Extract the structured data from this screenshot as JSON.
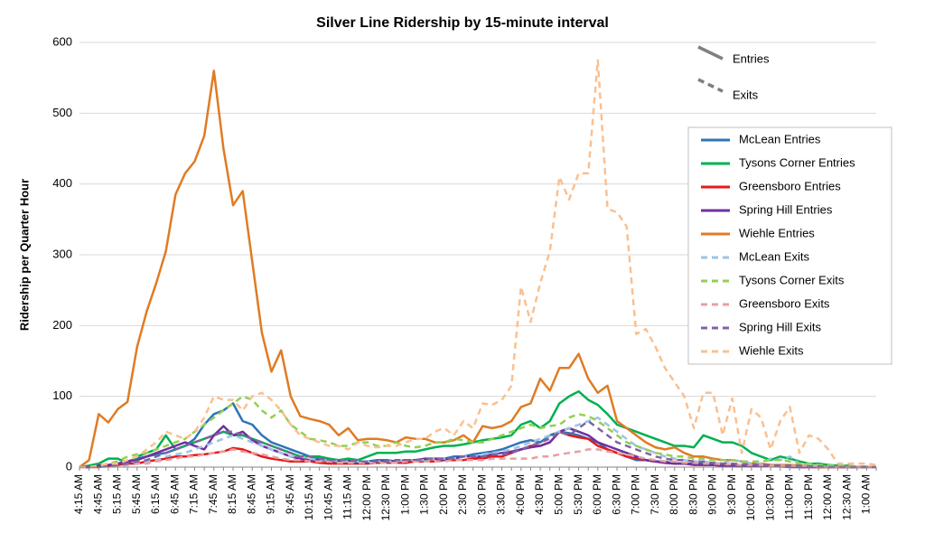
{
  "chart_data": {
    "type": "line",
    "title": "Silver Line Ridership by 15-minute interval",
    "y_label": "Ridership per Quarter Hour",
    "ylim": [
      0,
      600
    ],
    "yticks": [
      0,
      100,
      200,
      300,
      400,
      500,
      600
    ],
    "grid": true,
    "legend": "right",
    "line_styles": [
      {
        "name": "Entries",
        "dash": "solid",
        "color": "#808080"
      },
      {
        "name": "Exits",
        "dash": "dashed",
        "color": "#808080"
      }
    ],
    "categories": [
      "4:15 AM",
      null,
      "4:45 AM",
      null,
      "5:15 AM",
      null,
      "5:45 AM",
      null,
      "6:15 AM",
      null,
      "6:45 AM",
      null,
      "7:15 AM",
      null,
      "7:45 AM",
      null,
      "8:15 AM",
      null,
      "8:45 AM",
      null,
      "9:15 AM",
      null,
      "9:45 AM",
      null,
      "10:15 AM",
      null,
      "10:45 AM",
      null,
      "11:15 AM",
      null,
      "12:00 PM",
      null,
      "12:30 PM",
      null,
      "1:00 PM",
      null,
      "1:30 PM",
      null,
      "2:00 PM",
      null,
      "2:30 PM",
      null,
      "3:00 PM",
      null,
      "3:30 PM",
      null,
      "4:00 PM",
      null,
      "4:30 PM",
      null,
      "5:00 PM",
      null,
      "5:30 PM",
      null,
      "6:00 PM",
      null,
      "6:30 PM",
      null,
      "7:00 PM",
      null,
      "7:30 PM",
      null,
      "8:00 PM",
      null,
      "8:30 PM",
      null,
      "9:00 PM",
      null,
      "9:30 PM",
      null,
      "10:00 PM",
      null,
      "10:30 PM",
      null,
      "11:00 PM",
      null,
      "11:30 PM",
      null,
      "12:00 AM",
      null,
      "12:30 AM",
      null,
      "1:00 AM",
      null
    ],
    "series": [
      {
        "name": "McLean Entries",
        "color": "#2e75b6",
        "dash": "solid",
        "values": [
          0,
          0,
          2,
          3,
          5,
          8,
          12,
          15,
          18,
          20,
          25,
          30,
          40,
          60,
          75,
          80,
          90,
          65,
          60,
          45,
          35,
          30,
          25,
          20,
          15,
          12,
          10,
          10,
          10,
          8,
          8,
          10,
          10,
          8,
          8,
          10,
          10,
          12,
          12,
          15,
          15,
          18,
          20,
          22,
          25,
          30,
          35,
          38,
          35,
          45,
          50,
          48,
          45,
          40,
          35,
          25,
          20,
          15,
          10,
          10,
          8,
          8,
          5,
          5,
          5,
          5,
          3,
          3,
          3,
          2,
          2,
          2,
          2,
          2,
          1,
          1,
          1,
          0,
          0,
          0,
          0,
          0,
          0,
          0
        ]
      },
      {
        "name": "Tysons Corner Entries",
        "color": "#00b050",
        "dash": "solid",
        "values": [
          0,
          2,
          5,
          12,
          12,
          5,
          15,
          20,
          25,
          45,
          25,
          30,
          35,
          40,
          45,
          50,
          45,
          45,
          40,
          35,
          30,
          25,
          20,
          15,
          15,
          15,
          12,
          10,
          12,
          10,
          15,
          20,
          20,
          20,
          22,
          22,
          25,
          28,
          30,
          30,
          32,
          35,
          38,
          40,
          42,
          45,
          60,
          65,
          55,
          65,
          90,
          100,
          107,
          95,
          88,
          75,
          60,
          55,
          50,
          45,
          40,
          35,
          30,
          30,
          28,
          45,
          40,
          35,
          35,
          30,
          20,
          15,
          10,
          15,
          12,
          8,
          5,
          5,
          3,
          2,
          2,
          0,
          0,
          0
        ]
      },
      {
        "name": "Greensboro Entries",
        "color": "#e41a1c",
        "dash": "solid",
        "values": [
          0,
          0,
          0,
          2,
          3,
          5,
          5,
          8,
          10,
          12,
          15,
          15,
          17,
          18,
          20,
          22,
          27,
          25,
          20,
          15,
          12,
          10,
          8,
          8,
          8,
          6,
          5,
          5,
          5,
          5,
          5,
          6,
          6,
          6,
          6,
          8,
          8,
          8,
          10,
          10,
          10,
          12,
          12,
          15,
          15,
          20,
          25,
          30,
          30,
          35,
          50,
          45,
          42,
          40,
          30,
          25,
          20,
          15,
          12,
          10,
          8,
          6,
          5,
          5,
          3,
          3,
          3,
          2,
          2,
          2,
          1,
          1,
          1,
          1,
          1,
          0,
          0,
          0,
          0,
          0,
          0,
          0,
          0,
          0
        ]
      },
      {
        "name": "Spring Hill Entries",
        "color": "#7030a0",
        "dash": "solid",
        "values": [
          0,
          0,
          2,
          3,
          5,
          8,
          10,
          15,
          20,
          25,
          30,
          35,
          30,
          25,
          45,
          58,
          45,
          50,
          38,
          30,
          25,
          20,
          15,
          12,
          10,
          10,
          8,
          8,
          8,
          6,
          6,
          8,
          8,
          8,
          10,
          10,
          12,
          12,
          10,
          12,
          15,
          15,
          15,
          18,
          20,
          22,
          25,
          28,
          30,
          35,
          50,
          55,
          50,
          45,
          35,
          30,
          25,
          20,
          15,
          10,
          8,
          6,
          5,
          5,
          4,
          3,
          3,
          2,
          2,
          2,
          1,
          1,
          1,
          1,
          0,
          0,
          0,
          0,
          0,
          0,
          0,
          0,
          0,
          0
        ]
      },
      {
        "name": "Wiehle Entries",
        "color": "#e07b24",
        "dash": "solid",
        "values": [
          0,
          10,
          75,
          63,
          82,
          92,
          170,
          220,
          260,
          305,
          385,
          415,
          432,
          468,
          560,
          450,
          370,
          390,
          290,
          190,
          135,
          165,
          100,
          72,
          68,
          65,
          60,
          45,
          55,
          38,
          40,
          40,
          38,
          35,
          42,
          40,
          40,
          35,
          35,
          38,
          45,
          35,
          58,
          55,
          58,
          65,
          85,
          90,
          125,
          108,
          140,
          140,
          160,
          125,
          105,
          115,
          65,
          55,
          45,
          35,
          28,
          25,
          28,
          20,
          15,
          15,
          12,
          10,
          10,
          8,
          5,
          5,
          3,
          3,
          3,
          2,
          2,
          0,
          0,
          0,
          0,
          0,
          0,
          0
        ]
      },
      {
        "name": "McLean Exits",
        "color": "#9dc3e6",
        "dash": "dashed",
        "values": [
          0,
          0,
          0,
          1,
          2,
          3,
          5,
          8,
          10,
          15,
          18,
          20,
          25,
          30,
          35,
          40,
          45,
          40,
          35,
          30,
          25,
          20,
          15,
          15,
          12,
          10,
          10,
          8,
          8,
          8,
          8,
          8,
          8,
          8,
          10,
          10,
          10,
          12,
          12,
          12,
          15,
          15,
          18,
          20,
          22,
          25,
          30,
          35,
          40,
          45,
          50,
          55,
          60,
          65,
          70,
          60,
          50,
          40,
          30,
          25,
          20,
          15,
          12,
          10,
          8,
          8,
          6,
          5,
          10,
          8,
          5,
          5,
          12,
          10,
          15,
          5,
          3,
          3,
          2,
          2,
          1,
          1,
          0,
          0
        ]
      },
      {
        "name": "Tysons Corner Exits",
        "color": "#92d050",
        "dash": "dashed",
        "values": [
          0,
          0,
          2,
          5,
          8,
          15,
          18,
          20,
          25,
          30,
          35,
          40,
          50,
          60,
          70,
          80,
          90,
          100,
          95,
          80,
          70,
          80,
          60,
          50,
          40,
          38,
          35,
          30,
          30,
          35,
          35,
          30,
          30,
          35,
          30,
          28,
          30,
          35,
          35,
          40,
          38,
          35,
          35,
          40,
          45,
          50,
          55,
          60,
          55,
          58,
          60,
          70,
          75,
          72,
          65,
          55,
          45,
          35,
          30,
          25,
          20,
          18,
          15,
          15,
          12,
          12,
          10,
          10,
          10,
          8,
          8,
          8,
          10,
          10,
          8,
          5,
          5,
          3,
          2,
          2,
          2,
          1,
          1,
          0
        ]
      },
      {
        "name": "Greensboro Exits",
        "color": "#e6a0a0",
        "dash": "dashed",
        "values": [
          0,
          0,
          0,
          1,
          2,
          3,
          5,
          5,
          8,
          10,
          12,
          15,
          15,
          18,
          20,
          22,
          25,
          22,
          20,
          18,
          15,
          12,
          10,
          10,
          8,
          8,
          8,
          6,
          6,
          6,
          6,
          6,
          6,
          6,
          8,
          8,
          8,
          8,
          8,
          10,
          10,
          10,
          10,
          12,
          12,
          12,
          12,
          12,
          15,
          15,
          18,
          20,
          22,
          25,
          25,
          22,
          20,
          18,
          15,
          12,
          10,
          8,
          8,
          6,
          6,
          5,
          5,
          4,
          4,
          3,
          3,
          3,
          2,
          2,
          2,
          1,
          1,
          1,
          0,
          0,
          0,
          0,
          0,
          0
        ]
      },
      {
        "name": "Spring Hill Exits",
        "color": "#8064a2",
        "dash": "dashed",
        "values": [
          0,
          0,
          1,
          2,
          3,
          5,
          8,
          10,
          15,
          20,
          25,
          30,
          35,
          40,
          45,
          50,
          50,
          45,
          40,
          35,
          30,
          25,
          20,
          15,
          15,
          12,
          10,
          10,
          10,
          8,
          8,
          8,
          8,
          10,
          10,
          10,
          12,
          12,
          12,
          12,
          15,
          15,
          15,
          18,
          18,
          20,
          25,
          30,
          35,
          40,
          50,
          45,
          55,
          65,
          55,
          45,
          35,
          30,
          25,
          20,
          15,
          12,
          10,
          10,
          8,
          8,
          6,
          5,
          5,
          4,
          4,
          3,
          3,
          2,
          2,
          2,
          1,
          1,
          0,
          0,
          0,
          0,
          0,
          0
        ]
      },
      {
        "name": "Wiehle Exits",
        "color": "#fac090",
        "dash": "dashed",
        "values": [
          0,
          0,
          2,
          5,
          5,
          10,
          15,
          25,
          35,
          50,
          45,
          40,
          50,
          70,
          100,
          95,
          95,
          80,
          100,
          105,
          95,
          80,
          60,
          45,
          40,
          35,
          30,
          30,
          25,
          35,
          30,
          28,
          30,
          30,
          35,
          40,
          40,
          50,
          55,
          45,
          65,
          55,
          90,
          88,
          95,
          115,
          255,
          205,
          260,
          305,
          410,
          378,
          415,
          415,
          575,
          365,
          360,
          340,
          188,
          195,
          170,
          140,
          120,
          100,
          55,
          105,
          105,
          45,
          97,
          20,
          82,
          70,
          25,
          65,
          85,
          20,
          45,
          40,
          25,
          5,
          5,
          5,
          5,
          3
        ]
      }
    ]
  }
}
